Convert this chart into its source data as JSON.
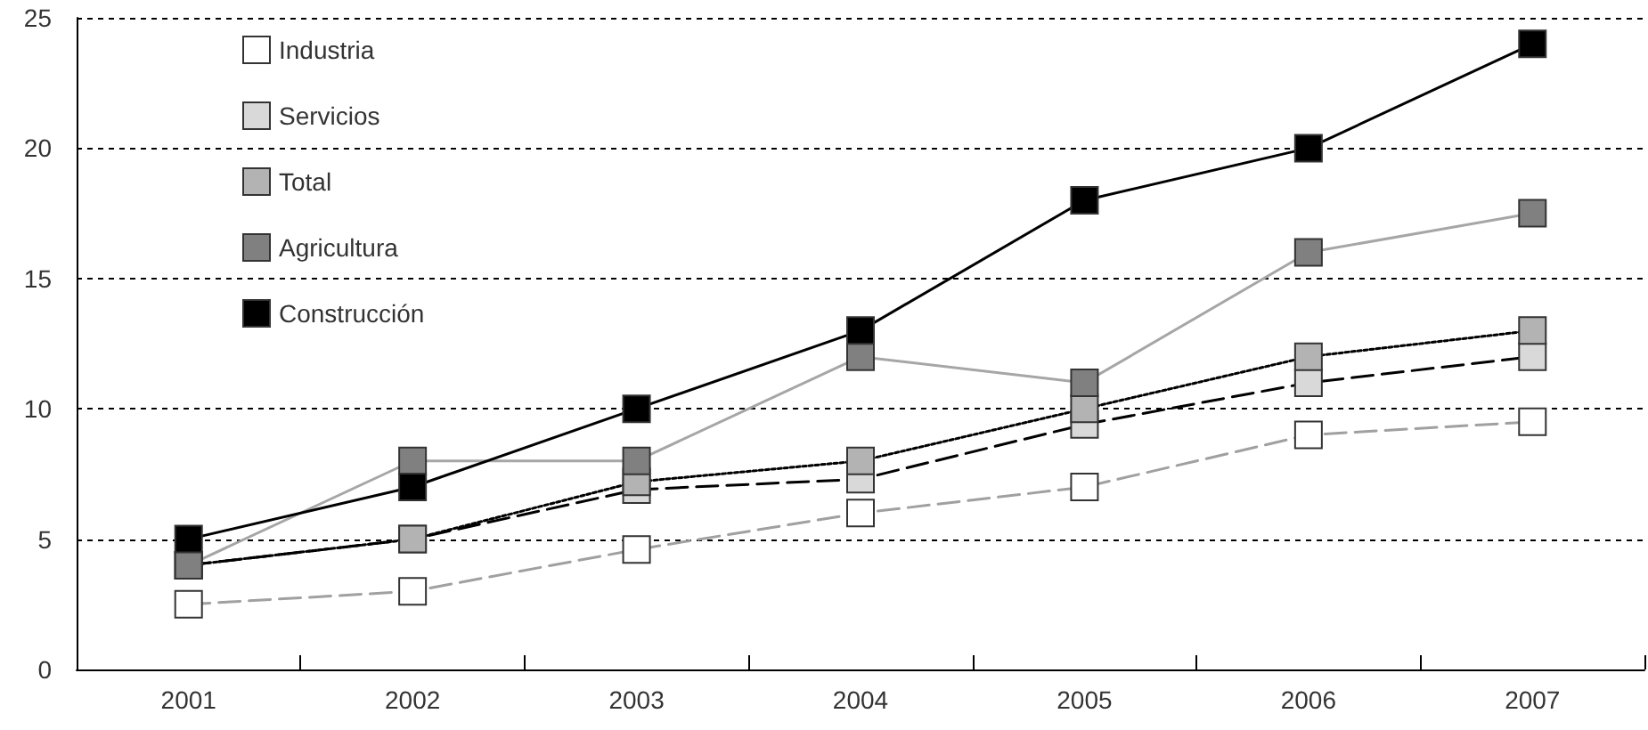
{
  "chart_data": {
    "type": "line",
    "categories": [
      "2001",
      "2002",
      "2003",
      "2004",
      "2005",
      "2006",
      "2007"
    ],
    "series": [
      {
        "name": "Industria",
        "color": "#ffffff",
        "line_style": "dashed",
        "values": [
          2.5,
          3.0,
          4.6,
          6.0,
          7.0,
          9.0,
          9.5
        ]
      },
      {
        "name": "Servicios",
        "color": "#d9d9d9",
        "line_style": "dashed",
        "values": [
          4.0,
          5.0,
          6.9,
          7.3,
          9.4,
          11.0,
          12.0
        ]
      },
      {
        "name": "Total",
        "color": "#b3b3b3",
        "line_style": "dotted",
        "values": [
          4.0,
          5.0,
          7.2,
          8.0,
          10.0,
          12.0,
          13.0
        ]
      },
      {
        "name": "Agricultura",
        "color": "#808080",
        "line_style": "solid",
        "values": [
          4.0,
          8.0,
          8.0,
          12.0,
          11.0,
          16.0,
          17.5
        ]
      },
      {
        "name": "Construcción",
        "color": "#000000",
        "line_style": "solid",
        "values": [
          5.0,
          7.0,
          10.0,
          13.0,
          18.0,
          20.0,
          24.0
        ]
      }
    ],
    "ylim": [
      0,
      25
    ],
    "yticks": [
      0,
      5,
      10,
      15,
      20,
      25
    ],
    "grid": "y",
    "legend": "top left",
    "marker": "square"
  }
}
